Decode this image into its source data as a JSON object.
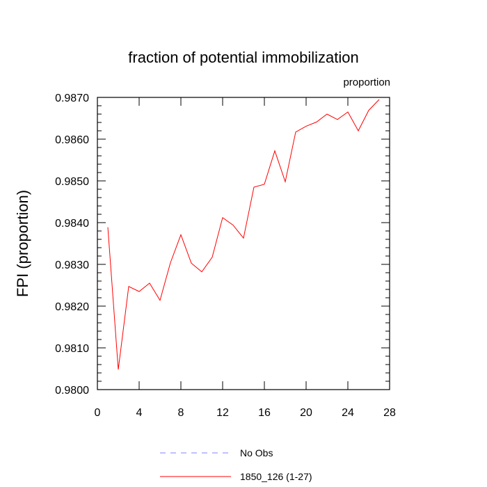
{
  "chart_data": {
    "type": "line",
    "title": "fraction of potential immobilization",
    "units_label": "proportion",
    "ylabel": "FPI  (proportion)",
    "xlabel": "",
    "xlim": [
      0,
      28
    ],
    "ylim": [
      0.98,
      0.987
    ],
    "x_ticks": [
      0,
      4,
      8,
      12,
      16,
      20,
      24,
      28
    ],
    "x_tick_labels": [
      "0",
      "4",
      "8",
      "12",
      "16",
      "20",
      "24",
      "28"
    ],
    "y_ticks": [
      0.98,
      0.981,
      0.982,
      0.983,
      0.984,
      0.985,
      0.986,
      0.987
    ],
    "y_tick_labels": [
      "0.9800",
      "0.9810",
      "0.9820",
      "0.9830",
      "0.9840",
      "0.9850",
      "0.9860",
      "0.9870"
    ],
    "grid": false,
    "legend_position": "bottom",
    "series": [
      {
        "name": "No Obs",
        "color": "#8080ff",
        "style": "dashed",
        "x": [],
        "values": []
      },
      {
        "name": "1850_126 (1-27)",
        "color": "#ff0000",
        "style": "solid",
        "x": [
          1,
          2,
          3,
          4,
          5,
          6,
          7,
          8,
          9,
          10,
          11,
          12,
          13,
          14,
          15,
          16,
          17,
          18,
          19,
          20,
          21,
          22,
          23,
          24,
          25,
          26,
          27
        ],
        "values": [
          0.98389,
          0.98048,
          0.98247,
          0.98235,
          0.98255,
          0.98214,
          0.98304,
          0.98371,
          0.98303,
          0.98282,
          0.98317,
          0.98412,
          0.98394,
          0.98363,
          0.98485,
          0.98492,
          0.98572,
          0.98498,
          0.98617,
          0.98631,
          0.98641,
          0.9866,
          0.98647,
          0.98665,
          0.9862,
          0.98669,
          0.98695
        ]
      }
    ]
  }
}
